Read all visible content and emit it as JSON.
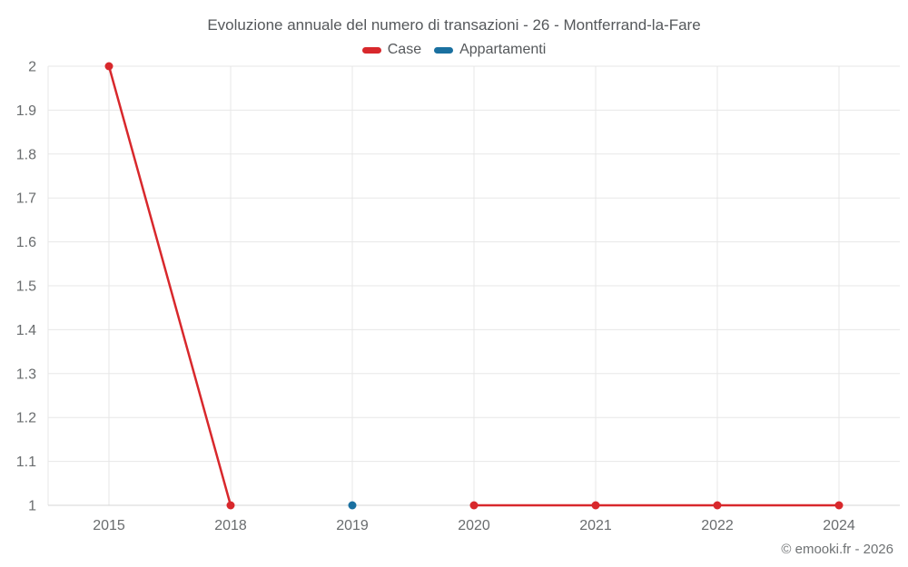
{
  "title": "Evoluzione annuale del numero di transazioni - 26 - Montferrand-la-Fare",
  "copyright": "© emooki.fr - 2026",
  "chart_data": {
    "type": "line",
    "categories": [
      "2015",
      "2018",
      "2019",
      "2020",
      "2021",
      "2022",
      "2024"
    ],
    "series": [
      {
        "name": "Case",
        "color": "#d8282c",
        "values": [
          2,
          1,
          null,
          1,
          1,
          1,
          1
        ]
      },
      {
        "name": "Appartamenti",
        "color": "#1a70a0",
        "values": [
          null,
          null,
          1,
          null,
          null,
          null,
          null
        ]
      }
    ],
    "title": "Evoluzione annuale del numero di transazioni - 26 - Montferrand-la-Fare",
    "xlabel": "",
    "ylabel": "",
    "ylim": [
      1,
      2
    ],
    "yticks": [
      "1",
      "1.1",
      "1.2",
      "1.3",
      "1.4",
      "1.5",
      "1.6",
      "1.7",
      "1.8",
      "1.9",
      "2"
    ],
    "grid": true,
    "legend_position": "top",
    "grid_color": "#e7e7e7",
    "axis_line_color": "#d6d6d6",
    "tick_label_color": "#696c6e",
    "marker_radius": 4.5,
    "line_width": 2.5
  }
}
